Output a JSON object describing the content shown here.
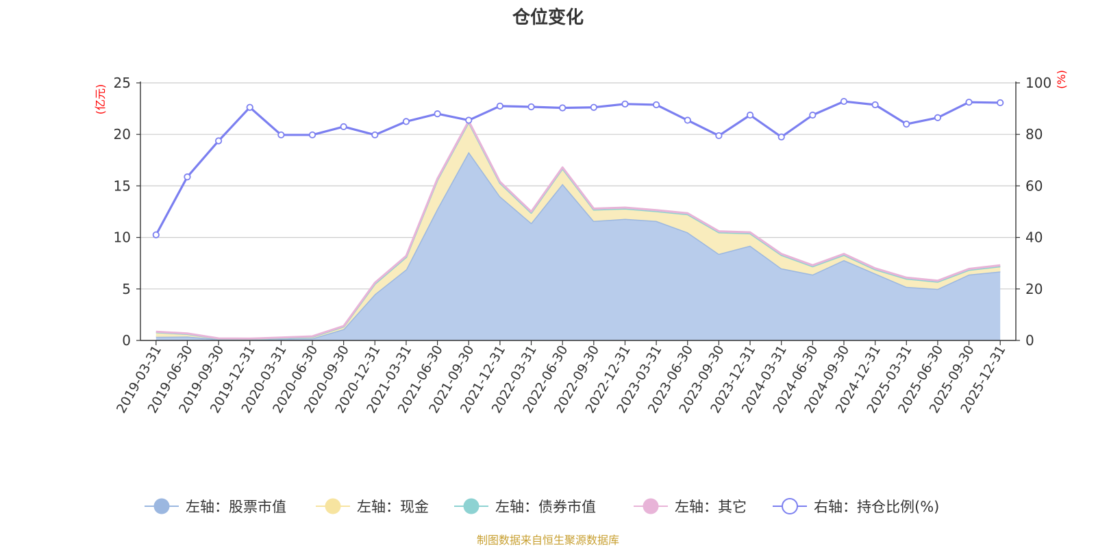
{
  "chart_data": {
    "type": "area",
    "title": "仓位变化",
    "source_note": "制图数据来自恒生聚源数据库",
    "left_axis": {
      "unit": "(亿元)",
      "min": 0,
      "max": 25,
      "ticks": [
        0,
        5,
        10,
        15,
        20,
        25
      ]
    },
    "right_axis": {
      "unit": "(%)",
      "min": 0,
      "max": 100,
      "ticks": [
        0,
        20,
        40,
        60,
        80,
        100
      ]
    },
    "categories": [
      "2019-03-31",
      "2019-06-30",
      "2019-09-30",
      "2019-12-31",
      "2020-03-31",
      "2020-06-30",
      "2020-09-30",
      "2020-12-31",
      "2021-03-31",
      "2021-06-30",
      "2021-09-30",
      "2021-12-31",
      "2022-03-31",
      "2022-06-30",
      "2022-09-30",
      "2022-12-31",
      "2023-03-31",
      "2023-06-30",
      "2023-09-30",
      "2023-12-31",
      "2024-03-31",
      "2024-06-30",
      "2024-09-30",
      "2024-12-31",
      "2025-03-31",
      "2025-06-30",
      "2025-09-30",
      "2025-12-31"
    ],
    "series": [
      {
        "name": "左轴：股票市值",
        "axis": "left",
        "color": "#9bb7e0",
        "fill": "#b8cceb",
        "values": [
          0.35,
          0.38,
          0.12,
          0.1,
          0.15,
          0.2,
          1.1,
          4.5,
          6.9,
          12.8,
          18.3,
          14.0,
          11.4,
          15.2,
          11.6,
          11.8,
          11.6,
          10.5,
          8.4,
          9.2,
          7.0,
          6.4,
          7.8,
          6.5,
          5.2,
          5.0,
          6.4,
          6.7
        ]
      },
      {
        "name": "左轴：现金",
        "axis": "left",
        "color": "#f7e4a0",
        "fill": "#f9ecbd",
        "values": [
          0.45,
          0.25,
          0.05,
          0.05,
          0.08,
          0.15,
          0.25,
          1.0,
          1.2,
          2.8,
          2.9,
          1.3,
          1.0,
          1.5,
          1.1,
          1.0,
          0.95,
          1.75,
          2.1,
          1.2,
          1.3,
          0.8,
          0.5,
          0.4,
          0.8,
          0.7,
          0.45,
          0.5
        ]
      },
      {
        "name": "左轴：债券市值",
        "axis": "left",
        "color": "#8dd2d2",
        "fill": "#a9dede",
        "values": [
          0,
          0,
          0,
          0,
          0,
          0,
          0,
          0,
          0,
          0,
          0,
          0,
          0,
          0,
          0,
          0,
          0,
          0,
          0,
          0,
          0,
          0,
          0,
          0,
          0,
          0,
          0,
          0
        ]
      },
      {
        "name": "左轴：其它",
        "axis": "left",
        "color": "#e8b4d8",
        "fill": "#eec6e0",
        "values": [
          0.05,
          0.05,
          0.03,
          0.03,
          0.05,
          0.05,
          0.05,
          0.1,
          0.1,
          0.1,
          0.1,
          0.1,
          0.1,
          0.1,
          0.1,
          0.1,
          0.1,
          0.1,
          0.1,
          0.1,
          0.1,
          0.1,
          0.1,
          0.1,
          0.1,
          0.1,
          0.1,
          0.1
        ]
      },
      {
        "name": "右轴：持仓比例(%)",
        "axis": "right",
        "color": "#7b7ff0",
        "values": [
          41,
          63.5,
          77.5,
          90.5,
          79.8,
          79.8,
          83,
          79.8,
          85,
          88,
          85.5,
          91,
          90.7,
          90.3,
          90.5,
          91.8,
          91.5,
          85.5,
          79.5,
          87.5,
          79,
          87.5,
          92.8,
          91.5,
          84,
          86.5,
          92.5,
          92.3
        ]
      }
    ]
  }
}
